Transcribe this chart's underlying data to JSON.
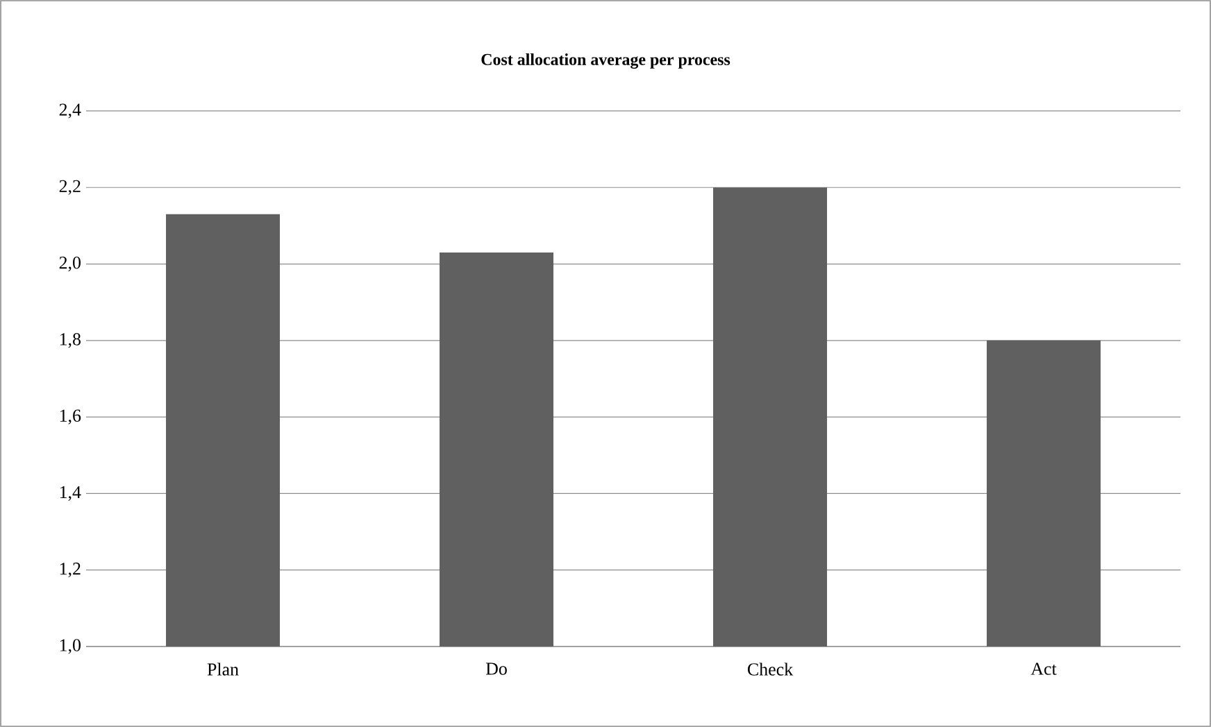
{
  "chart_data": {
    "type": "bar",
    "title": "Cost allocation average per process",
    "categories": [
      "Plan",
      "Do",
      "Check",
      "Act"
    ],
    "values": [
      2.13,
      2.03,
      2.2,
      1.8
    ],
    "color": "#606060",
    "ylim": [
      1.0,
      2.4
    ],
    "yticks": [
      {
        "value": 1.0,
        "label": "1,0"
      },
      {
        "value": 1.2,
        "label": "1,2"
      },
      {
        "value": 1.4,
        "label": "1,4"
      },
      {
        "value": 1.6,
        "label": "1,6"
      },
      {
        "value": 1.8,
        "label": "1,8"
      },
      {
        "value": 2.0,
        "label": "2,0"
      },
      {
        "value": 2.2,
        "label": "2,2"
      },
      {
        "value": 2.4,
        "label": "2,4"
      }
    ],
    "grid": "y"
  }
}
